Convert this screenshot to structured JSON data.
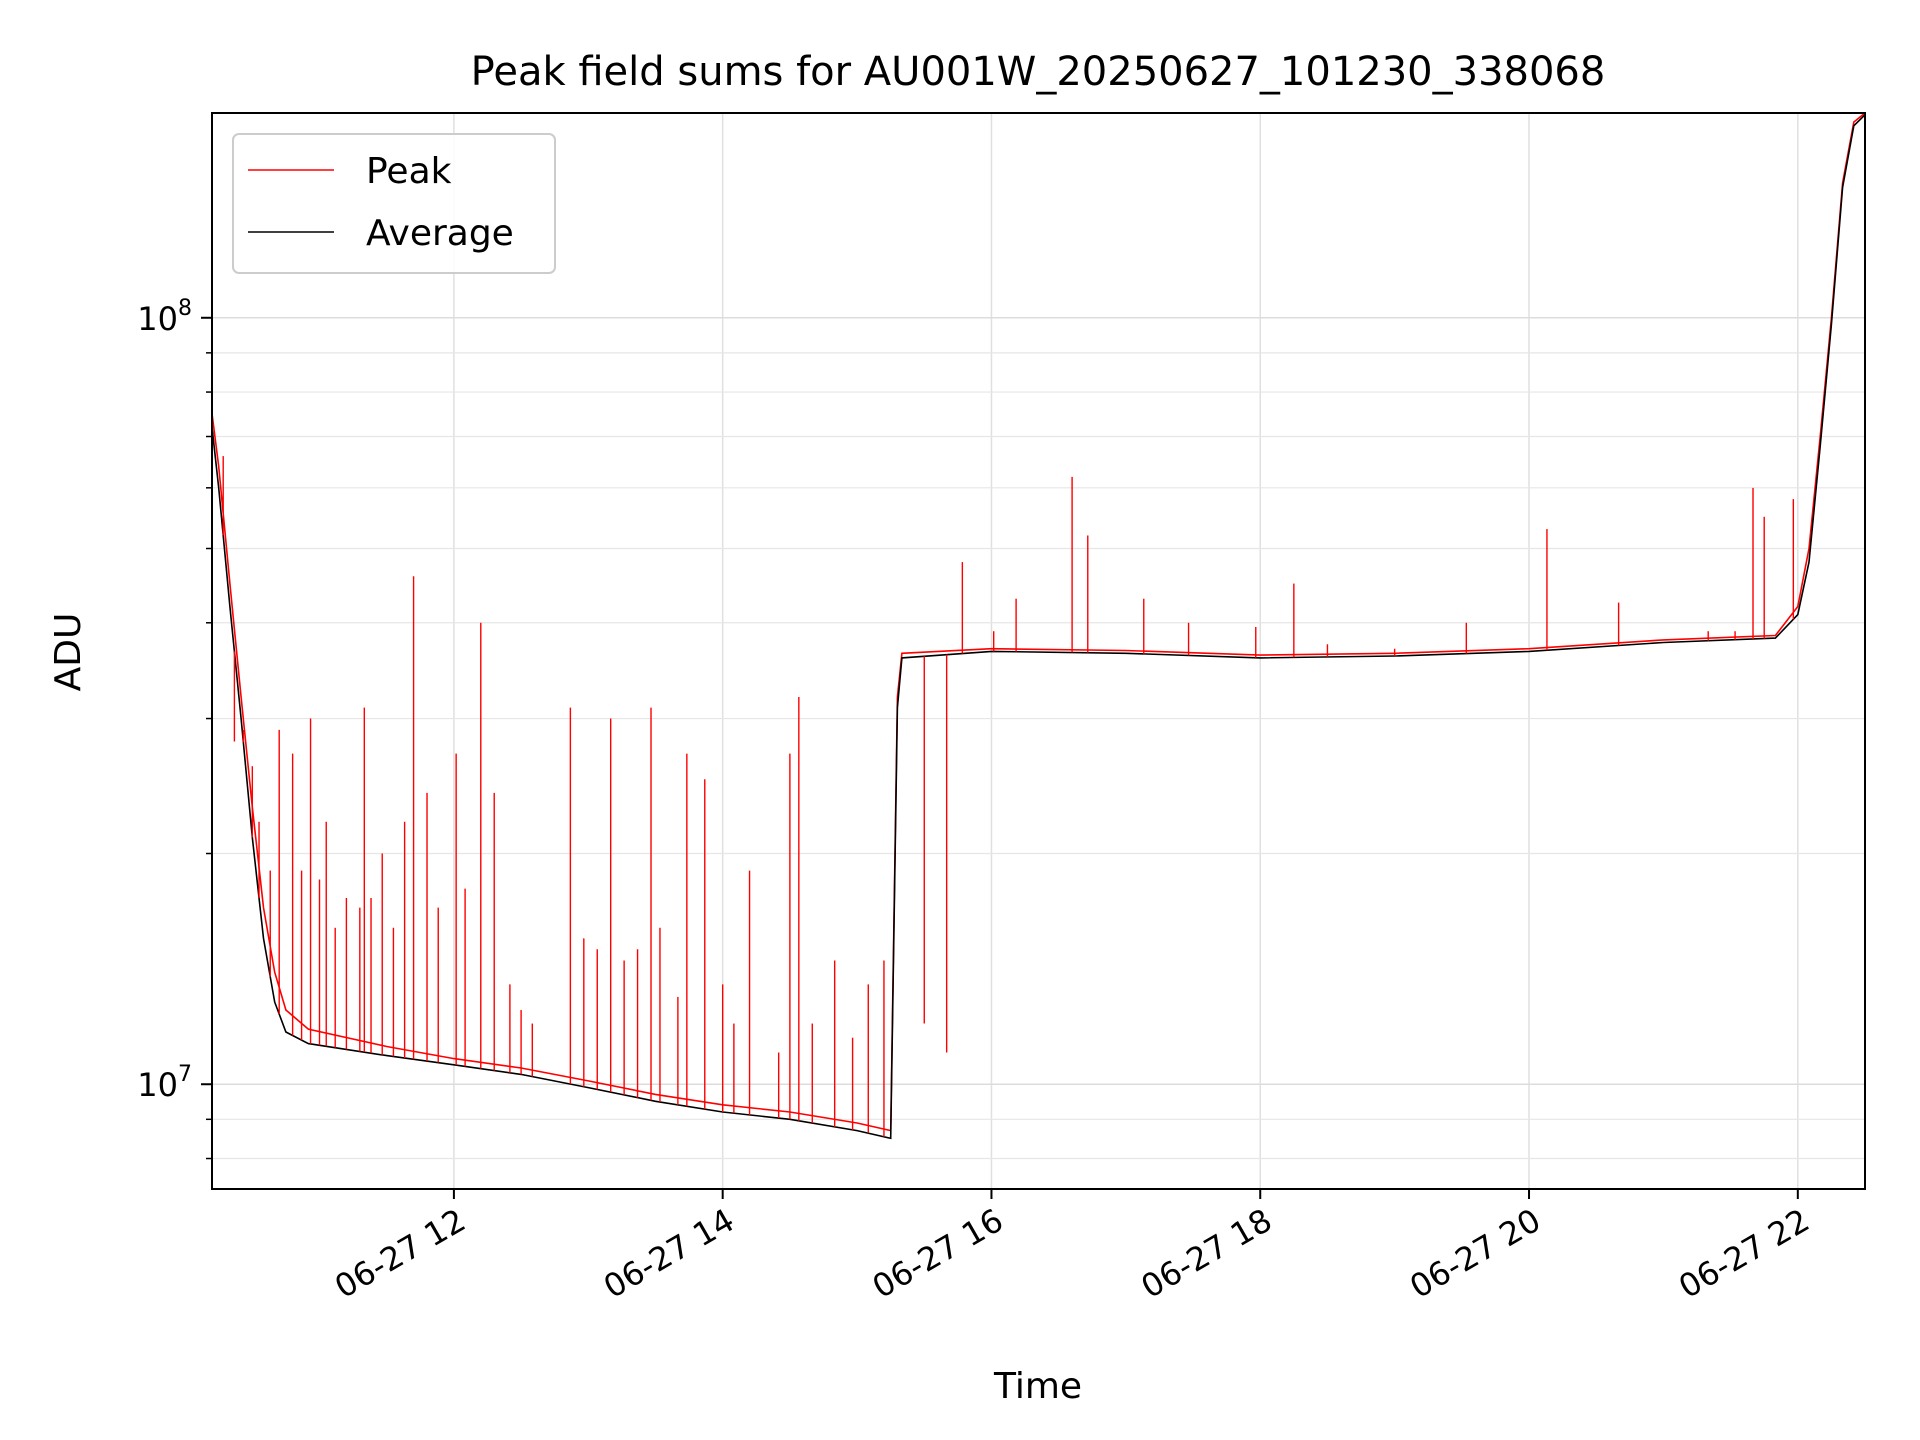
{
  "chart_data": {
    "type": "line",
    "title": "Peak field sums for AU001W_20250627_101230_338068",
    "xlabel": "Time",
    "ylabel": "ADU",
    "y_scale": "log",
    "ylim": [
      7300000,
      185000000
    ],
    "xlim": [
      "2025-06-27 10:12",
      "2025-06-27 22:30"
    ],
    "grid": true,
    "legend_position": "upper-left",
    "x_ticks": [
      {
        "t": "2025-06-27 12:00",
        "label": "06-27 12"
      },
      {
        "t": "2025-06-27 14:00",
        "label": "06-27 14"
      },
      {
        "t": "2025-06-27 16:00",
        "label": "06-27 16"
      },
      {
        "t": "2025-06-27 18:00",
        "label": "06-27 18"
      },
      {
        "t": "2025-06-27 20:00",
        "label": "06-27 20"
      },
      {
        "t": "2025-06-27 22:00",
        "label": "06-27 22"
      }
    ],
    "y_ticks": [
      {
        "value": 10000000,
        "base": "10",
        "exp": "7"
      },
      {
        "value": 100000000,
        "base": "10",
        "exp": "8"
      }
    ],
    "series": [
      {
        "name": "Peak",
        "color": "#ff0000",
        "points": [
          [
            "2025-06-27 10:12",
            75000000
          ],
          [
            "2025-06-27 10:15",
            64000000
          ],
          [
            "2025-06-27 10:20",
            45000000
          ],
          [
            "2025-06-27 10:25",
            32000000
          ],
          [
            "2025-06-27 10:30",
            23000000
          ],
          [
            "2025-06-27 10:35",
            17000000
          ],
          [
            "2025-06-27 10:40",
            14000000
          ],
          [
            "2025-06-27 10:45",
            12500000
          ],
          [
            "2025-06-27 10:55",
            11800000
          ],
          [
            "2025-06-27 11:30",
            11200000
          ],
          [
            "2025-06-27 12:00",
            10800000
          ],
          [
            "2025-06-27 12:30",
            10500000
          ],
          [
            "2025-06-27 13:00",
            10100000
          ],
          [
            "2025-06-27 13:30",
            9700000
          ],
          [
            "2025-06-27 14:00",
            9400000
          ],
          [
            "2025-06-27 14:30",
            9200000
          ],
          [
            "2025-06-27 15:00",
            8900000
          ],
          [
            "2025-06-27 15:15",
            8700000
          ],
          [
            "2025-06-27 15:18",
            32000000
          ],
          [
            "2025-06-27 15:20",
            36500000
          ],
          [
            "2025-06-27 16:00",
            37000000
          ],
          [
            "2025-06-27 17:00",
            36800000
          ],
          [
            "2025-06-27 18:00",
            36300000
          ],
          [
            "2025-06-27 19:00",
            36500000
          ],
          [
            "2025-06-27 20:00",
            37000000
          ],
          [
            "2025-06-27 21:00",
            38000000
          ],
          [
            "2025-06-27 21:50",
            38500000
          ],
          [
            "2025-06-27 22:00",
            42000000
          ],
          [
            "2025-06-27 22:05",
            50000000
          ],
          [
            "2025-06-27 22:10",
            70000000
          ],
          [
            "2025-06-27 22:15",
            100000000
          ],
          [
            "2025-06-27 22:20",
            150000000
          ],
          [
            "2025-06-27 22:25",
            180000000
          ],
          [
            "2025-06-27 22:30",
            185000000
          ]
        ]
      },
      {
        "name": "Average",
        "color": "#000000",
        "points": [
          [
            "2025-06-27 10:12",
            72000000
          ],
          [
            "2025-06-27 10:15",
            60000000
          ],
          [
            "2025-06-27 10:20",
            42000000
          ],
          [
            "2025-06-27 10:25",
            30000000
          ],
          [
            "2025-06-27 10:30",
            21000000
          ],
          [
            "2025-06-27 10:35",
            15500000
          ],
          [
            "2025-06-27 10:40",
            12800000
          ],
          [
            "2025-06-27 10:45",
            11700000
          ],
          [
            "2025-06-27 10:55",
            11300000
          ],
          [
            "2025-06-27 11:30",
            10900000
          ],
          [
            "2025-06-27 12:00",
            10600000
          ],
          [
            "2025-06-27 12:30",
            10300000
          ],
          [
            "2025-06-27 13:00",
            9900000
          ],
          [
            "2025-06-27 13:30",
            9500000
          ],
          [
            "2025-06-27 14:00",
            9200000
          ],
          [
            "2025-06-27 14:30",
            9000000
          ],
          [
            "2025-06-27 15:00",
            8700000
          ],
          [
            "2025-06-27 15:15",
            8500000
          ],
          [
            "2025-06-27 15:18",
            31000000
          ],
          [
            "2025-06-27 15:20",
            36000000
          ],
          [
            "2025-06-27 16:00",
            36700000
          ],
          [
            "2025-06-27 17:00",
            36500000
          ],
          [
            "2025-06-27 18:00",
            36000000
          ],
          [
            "2025-06-27 19:00",
            36200000
          ],
          [
            "2025-06-27 20:00",
            36700000
          ],
          [
            "2025-06-27 21:00",
            37700000
          ],
          [
            "2025-06-27 21:50",
            38200000
          ],
          [
            "2025-06-27 22:00",
            41000000
          ],
          [
            "2025-06-27 22:05",
            48000000
          ],
          [
            "2025-06-27 22:10",
            68000000
          ],
          [
            "2025-06-27 22:15",
            98000000
          ],
          [
            "2025-06-27 22:20",
            148000000
          ],
          [
            "2025-06-27 22:25",
            178000000
          ],
          [
            "2025-06-27 22:30",
            184000000
          ]
        ]
      }
    ],
    "peak_spikes": [
      [
        "2025-06-27 10:17",
        66000000
      ],
      [
        "2025-06-27 10:22",
        28000000
      ],
      [
        "2025-06-27 10:26",
        29000000
      ],
      [
        "2025-06-27 10:30",
        26000000
      ],
      [
        "2025-06-27 10:33",
        22000000
      ],
      [
        "2025-06-27 10:38",
        19000000
      ],
      [
        "2025-06-27 10:42",
        29000000
      ],
      [
        "2025-06-27 10:48",
        27000000
      ],
      [
        "2025-06-27 10:52",
        19000000
      ],
      [
        "2025-06-27 10:56",
        30000000
      ],
      [
        "2025-06-27 11:00",
        18500000
      ],
      [
        "2025-06-27 11:03",
        22000000
      ],
      [
        "2025-06-27 11:07",
        16000000
      ],
      [
        "2025-06-27 11:12",
        17500000
      ],
      [
        "2025-06-27 11:18",
        17000000
      ],
      [
        "2025-06-27 11:20",
        31000000
      ],
      [
        "2025-06-27 11:23",
        17500000
      ],
      [
        "2025-06-27 11:28",
        20000000
      ],
      [
        "2025-06-27 11:33",
        16000000
      ],
      [
        "2025-06-27 11:38",
        22000000
      ],
      [
        "2025-06-27 11:42",
        46000000
      ],
      [
        "2025-06-27 11:48",
        24000000
      ],
      [
        "2025-06-27 11:53",
        17000000
      ],
      [
        "2025-06-27 12:01",
        27000000
      ],
      [
        "2025-06-27 12:05",
        18000000
      ],
      [
        "2025-06-27 12:12",
        40000000
      ],
      [
        "2025-06-27 12:18",
        24000000
      ],
      [
        "2025-06-27 12:25",
        13500000
      ],
      [
        "2025-06-27 12:30",
        12500000
      ],
      [
        "2025-06-27 12:35",
        12000000
      ],
      [
        "2025-06-27 12:52",
        31000000
      ],
      [
        "2025-06-27 12:58",
        15500000
      ],
      [
        "2025-06-27 13:04",
        15000000
      ],
      [
        "2025-06-27 13:10",
        30000000
      ],
      [
        "2025-06-27 13:16",
        14500000
      ],
      [
        "2025-06-27 13:22",
        15000000
      ],
      [
        "2025-06-27 13:28",
        31000000
      ],
      [
        "2025-06-27 13:32",
        16000000
      ],
      [
        "2025-06-27 13:40",
        13000000
      ],
      [
        "2025-06-27 13:44",
        27000000
      ],
      [
        "2025-06-27 13:52",
        25000000
      ],
      [
        "2025-06-27 14:00",
        13500000
      ],
      [
        "2025-06-27 14:05",
        12000000
      ],
      [
        "2025-06-27 14:12",
        19000000
      ],
      [
        "2025-06-27 14:25",
        11000000
      ],
      [
        "2025-06-27 14:30",
        27000000
      ],
      [
        "2025-06-27 14:34",
        32000000
      ],
      [
        "2025-06-27 14:40",
        12000000
      ],
      [
        "2025-06-27 14:50",
        14500000
      ],
      [
        "2025-06-27 14:58",
        11500000
      ],
      [
        "2025-06-27 15:05",
        13500000
      ],
      [
        "2025-06-27 15:12",
        14500000
      ],
      [
        "2025-06-27 15:30",
        12000000
      ],
      [
        "2025-06-27 15:40",
        11000000
      ],
      [
        "2025-06-27 15:47",
        48000000
      ],
      [
        "2025-06-27 16:01",
        39000000
      ],
      [
        "2025-06-27 16:11",
        43000000
      ],
      [
        "2025-06-27 16:36",
        62000000
      ],
      [
        "2025-06-27 16:43",
        52000000
      ],
      [
        "2025-06-27 17:08",
        43000000
      ],
      [
        "2025-06-27 17:28",
        40000000
      ],
      [
        "2025-06-27 17:58",
        39500000
      ],
      [
        "2025-06-27 18:15",
        45000000
      ],
      [
        "2025-06-27 18:30",
        37500000
      ],
      [
        "2025-06-27 19:00",
        37000000
      ],
      [
        "2025-06-27 19:32",
        40000000
      ],
      [
        "2025-06-27 20:08",
        53000000
      ],
      [
        "2025-06-27 20:40",
        42500000
      ],
      [
        "2025-06-27 21:20",
        39000000
      ],
      [
        "2025-06-27 21:32",
        39000000
      ],
      [
        "2025-06-27 21:40",
        60000000
      ],
      [
        "2025-06-27 21:45",
        55000000
      ],
      [
        "2025-06-27 21:58",
        58000000
      ]
    ]
  }
}
